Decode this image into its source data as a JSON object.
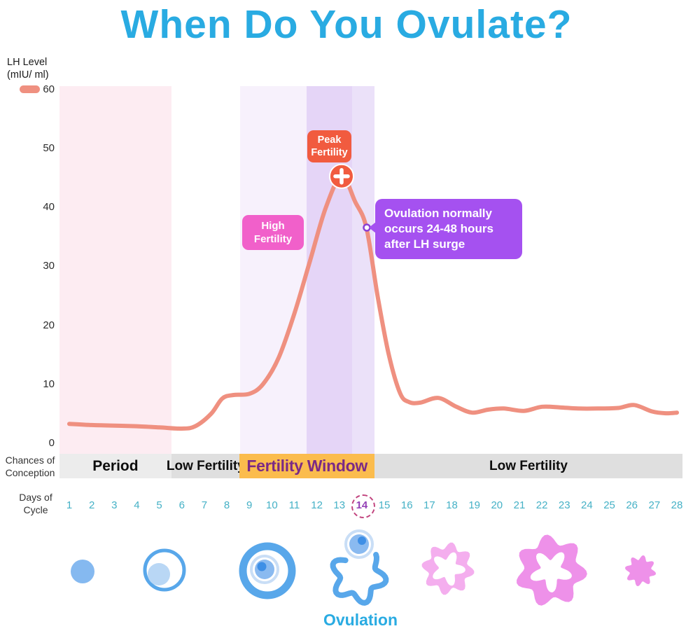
{
  "title": "When Do You Ovulate?",
  "y_axis": {
    "label_line1": "LH Level",
    "label_line2": "(mIU/ ml)",
    "ticks": [
      60,
      50,
      40,
      30,
      20,
      10,
      0
    ]
  },
  "chart_data": {
    "type": "line",
    "title": "When Do You Ovulate?",
    "xlabel": "Days of Cycle",
    "ylabel": "LH Level (mIU/ ml)",
    "xlim": [
      1,
      28
    ],
    "ylim": [
      0,
      60
    ],
    "grid": false,
    "series": [
      {
        "name": "LH Level (mIU/ml)",
        "color": "#ef9080",
        "points": [
          [
            1,
            3.3
          ],
          [
            2,
            3.1
          ],
          [
            3,
            3.0
          ],
          [
            4,
            2.9
          ],
          [
            5,
            2.7
          ],
          [
            6,
            2.5
          ],
          [
            6.6,
            2.9
          ],
          [
            7.3,
            5.0
          ],
          [
            7.8,
            7.6
          ],
          [
            8.3,
            8.2
          ],
          [
            9.0,
            8.4
          ],
          [
            9.6,
            10.0
          ],
          [
            10.3,
            14.5
          ],
          [
            11.0,
            22.0
          ],
          [
            11.7,
            31.0
          ],
          [
            12.4,
            40.0
          ],
          [
            13.1,
            45.3
          ],
          [
            13.7,
            41.0
          ],
          [
            14.2,
            36.6
          ],
          [
            14.7,
            25.0
          ],
          [
            15.2,
            15.0
          ],
          [
            15.7,
            8.5
          ],
          [
            16.1,
            7.0
          ],
          [
            16.6,
            6.9
          ],
          [
            17.4,
            7.7
          ],
          [
            18.2,
            6.2
          ],
          [
            18.9,
            5.2
          ],
          [
            19.6,
            5.7
          ],
          [
            20.3,
            5.9
          ],
          [
            21.2,
            5.5
          ],
          [
            22.0,
            6.2
          ],
          [
            22.8,
            6.1
          ],
          [
            23.6,
            5.9
          ],
          [
            24.5,
            5.9
          ],
          [
            25.4,
            6.0
          ],
          [
            26.1,
            6.5
          ],
          [
            26.9,
            5.4
          ],
          [
            27.5,
            5.1
          ],
          [
            28,
            5.2
          ]
        ]
      }
    ],
    "peak": {
      "day": 13.1,
      "value": 45.3
    },
    "tooltip_anchor": {
      "day": 14.22,
      "value": 36.6
    },
    "bands": [
      {
        "name": "period-band",
        "from_day": 0.55,
        "to_day": 5.55,
        "color": "#fdecf2"
      },
      {
        "name": "high-fertility-band",
        "from_day": 8.6,
        "to_day": 11.55,
        "color": "#f7f1fc"
      },
      {
        "name": "peak-fertility-band",
        "from_day": 11.55,
        "to_day": 13.57,
        "color": "#e5d5f7"
      },
      {
        "name": "post-peak-band",
        "from_day": 13.57,
        "to_day": 14.56,
        "color": "#ebe1f9"
      }
    ]
  },
  "annotations": {
    "peak_box": {
      "line1": "Peak",
      "line2": "Fertility",
      "color": "#f15b3f"
    },
    "high_box": {
      "line1": "High",
      "line2": "Fertility",
      "color": "#f160ca"
    },
    "tooltip": {
      "text": "Ovulation normally occurs 24-48 hours after LH surge",
      "color": "#a551f0"
    }
  },
  "conception_bar": {
    "row_label_line1": "Chances of",
    "row_label_line2": "Conception",
    "segments": [
      {
        "label": "Period",
        "from_day": 0.55,
        "to_day": 5.55,
        "bg": "#ececec"
      },
      {
        "label": "Low Fertility",
        "from_day": 5.55,
        "to_day": 8.57,
        "bg": "#dfdfdf"
      },
      {
        "label": "Fertility Window",
        "from_day": 8.57,
        "to_day": 14.56,
        "bg": "#fbbc4d",
        "text_color": "#7b2a86"
      },
      {
        "label": "Low Fertility",
        "from_day": 14.56,
        "to_day": 28.25,
        "bg": "#dfdfdf"
      }
    ]
  },
  "days_row": {
    "label_line1": "Days of",
    "label_line2": "Cycle",
    "days": [
      1,
      2,
      3,
      4,
      5,
      6,
      7,
      8,
      9,
      10,
      11,
      12,
      13,
      14,
      15,
      16,
      17,
      18,
      19,
      20,
      21,
      22,
      23,
      24,
      25,
      26,
      27,
      28
    ],
    "highlighted_day": 14,
    "day_color": "#45b1c6",
    "highlight_color": "#9340b6"
  },
  "footer": {
    "ovulation_label": "Ovulation"
  },
  "illustrations": [
    "primordial-follicle",
    "developing-follicle",
    "mature-follicle",
    "ovulation-release",
    "early-corpus-luteum",
    "corpus-luteum",
    "degenerating-corpus-luteum"
  ],
  "colors": {
    "title": "#29abe2",
    "curve": "#ef9080",
    "peak_marker": "#f15b3f",
    "follicle_blue": "#58a7ea",
    "egg_blue": "#8abaf0",
    "egg_dot": "#3e8fe6",
    "corpus_pink_light": "#f4aeee",
    "corpus_pink": "#ee91e9"
  }
}
